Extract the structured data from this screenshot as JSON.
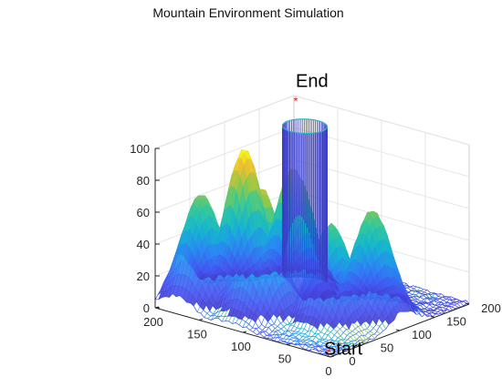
{
  "chart_data": {
    "type": "surface",
    "title": "Mountain Environment Simulation",
    "xlabel": "",
    "ylabel": "",
    "zlabel": "",
    "xlim": [
      0,
      200
    ],
    "ylim": [
      0,
      200
    ],
    "zlim": [
      0,
      100
    ],
    "x_ticks": [
      "0",
      "50",
      "100",
      "150",
      "200"
    ],
    "y_ticks": [
      "0",
      "50",
      "100",
      "150",
      "200"
    ],
    "z_ticks": [
      "0",
      "20",
      "40",
      "60",
      "80",
      "100"
    ],
    "grid": true,
    "colormap": "parula",
    "peaks": [
      {
        "x": 55,
        "y": 70,
        "height": 62
      },
      {
        "x": 35,
        "y": 105,
        "height": 68
      },
      {
        "x": 125,
        "y": 105,
        "height": 80
      },
      {
        "x": 150,
        "y": 65,
        "height": 95
      },
      {
        "x": 115,
        "y": 45,
        "height": 80
      },
      {
        "x": 175,
        "y": 35,
        "height": 68
      }
    ],
    "obstacle": {
      "type": "cylinder",
      "x": 140,
      "y": 140,
      "radius": 20,
      "height": 100
    },
    "annotations": [
      {
        "text": "Start",
        "x": 10,
        "y": 10,
        "z": 0,
        "marker_color": "#e03c3c"
      },
      {
        "text": "End",
        "x": 190,
        "y": 190,
        "z": 100,
        "marker_color": "#e01919"
      }
    ]
  }
}
